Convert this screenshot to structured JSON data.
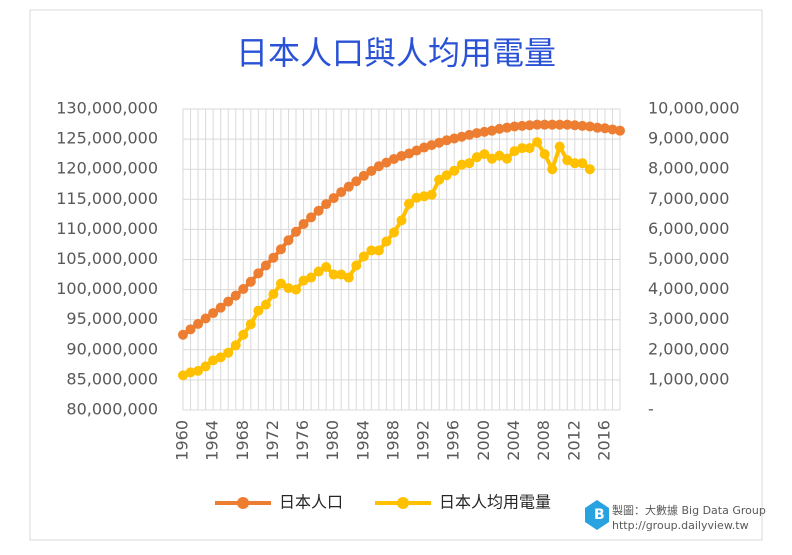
{
  "chart_data": {
    "type": "line",
    "title": "日本人口與人均用電量",
    "x": [
      1960,
      1961,
      1962,
      1963,
      1964,
      1965,
      1966,
      1967,
      1968,
      1969,
      1970,
      1971,
      1972,
      1973,
      1974,
      1975,
      1976,
      1977,
      1978,
      1979,
      1980,
      1981,
      1982,
      1983,
      1984,
      1985,
      1986,
      1987,
      1988,
      1989,
      1990,
      1991,
      1992,
      1993,
      1994,
      1995,
      1996,
      1997,
      1998,
      1999,
      2000,
      2001,
      2002,
      2003,
      2004,
      2005,
      2006,
      2007,
      2008,
      2009,
      2010,
      2011,
      2012,
      2013,
      2014,
      2015,
      2016,
      2017,
      2018
    ],
    "xlim": [
      1960,
      2018
    ],
    "xticks": [
      1960,
      1964,
      1968,
      1972,
      1976,
      1980,
      1984,
      1988,
      1992,
      1996,
      2000,
      2004,
      2008,
      2012,
      2016
    ],
    "series": [
      {
        "name": "日本人口",
        "color": "#ed7d31",
        "values": [
          92500000,
          93400000,
          94300000,
          95200000,
          96100000,
          97000000,
          98000000,
          99000000,
          100100000,
          101300000,
          102700000,
          104000000,
          105300000,
          106700000,
          108200000,
          109600000,
          110900000,
          112000000,
          113100000,
          114200000,
          115200000,
          116200000,
          117100000,
          118000000,
          118900000,
          119700000,
          120500000,
          121100000,
          121700000,
          122200000,
          122600000,
          123100000,
          123600000,
          124000000,
          124400000,
          124800000,
          125100000,
          125400000,
          125700000,
          126000000,
          126200000,
          126400000,
          126700000,
          126900000,
          127100000,
          127200000,
          127300000,
          127400000,
          127400000,
          127400000,
          127400000,
          127400000,
          127300000,
          127200000,
          127100000,
          126900000,
          126800000,
          126600000,
          126400000
        ]
      },
      {
        "name": "日本人均用電量",
        "color": "#ffc000",
        "axis": "y2",
        "values": [
          1150000,
          1250000,
          1300000,
          1450000,
          1650000,
          1750000,
          1900000,
          2150000,
          2500000,
          2850000,
          3300000,
          3500000,
          3850000,
          4200000,
          4050000,
          4000000,
          4300000,
          4400000,
          4600000,
          4750000,
          4500000,
          4500000,
          4400000,
          4800000,
          5100000,
          5300000,
          5300000,
          5600000,
          5900000,
          6300000,
          6850000,
          7050000,
          7100000,
          7150000,
          7650000,
          7800000,
          7950000,
          8150000,
          8200000,
          8400000,
          8500000,
          8350000,
          8450000,
          8350000,
          8600000,
          8700000,
          8700000,
          8900000,
          8500000,
          8000000,
          8750000,
          8300000,
          8200000,
          8200000,
          8000000,
          null,
          null,
          null,
          null
        ]
      }
    ],
    "ylim": [
      80000000,
      130000000
    ],
    "yticks": [
      {
        "value": 80000000,
        "label": "80,000,000"
      },
      {
        "value": 85000000,
        "label": "85,000,000"
      },
      {
        "value": 90000000,
        "label": "90,000,000"
      },
      {
        "value": 95000000,
        "label": "95,000,000"
      },
      {
        "value": 100000000,
        "label": "100,000,000"
      },
      {
        "value": 105000000,
        "label": "105,000,000"
      },
      {
        "value": 110000000,
        "label": "110,000,000"
      },
      {
        "value": 115000000,
        "label": "115,000,000"
      },
      {
        "value": 120000000,
        "label": "120,000,000"
      },
      {
        "value": 125000000,
        "label": "125,000,000"
      },
      {
        "value": 130000000,
        "label": "130,000,000"
      }
    ],
    "y2lim": [
      0,
      10000000
    ],
    "y2ticks": [
      {
        "value": 0,
        "label": "-"
      },
      {
        "value": 1000000,
        "label": "1,000,000"
      },
      {
        "value": 2000000,
        "label": "2,000,000"
      },
      {
        "value": 3000000,
        "label": "3,000,000"
      },
      {
        "value": 4000000,
        "label": "4,000,000"
      },
      {
        "value": 5000000,
        "label": "5,000,000"
      },
      {
        "value": 6000000,
        "label": "6,000,000"
      },
      {
        "value": 7000000,
        "label": "7,000,000"
      },
      {
        "value": 8000000,
        "label": "8,000,000"
      },
      {
        "value": 9000000,
        "label": "9,000,000"
      },
      {
        "value": 10000000,
        "label": "10,000,000"
      }
    ],
    "grid": true,
    "legend": "bottom",
    "credit": {
      "line1": "製圖：大數據 Big Data Group",
      "line2": "http://group.dailyview.tw"
    }
  }
}
